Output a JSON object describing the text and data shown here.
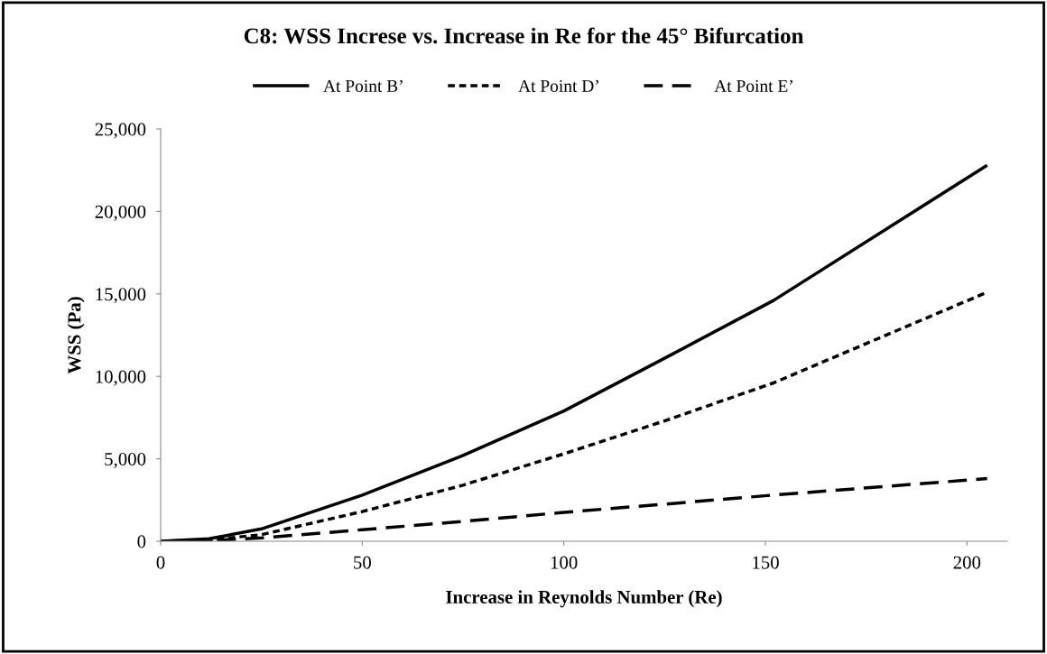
{
  "chart_data": {
    "type": "line",
    "title": "C8: WSS Increse vs. Increase in Re for the 45° Bifurcation",
    "xlabel": "Increase in Reynolds Number (Re)",
    "ylabel": "WSS (Pa)",
    "x": [
      0,
      12,
      25,
      50,
      75,
      100,
      125,
      152,
      205
    ],
    "series": [
      {
        "name": "At Point B’",
        "color": "#000000",
        "line_style": "solid",
        "values": [
          0,
          150,
          750,
          2800,
          5200,
          7900,
          11100,
          14600,
          22800
        ]
      },
      {
        "name": "At Point D’",
        "color": "#000000",
        "line_style": "dotted",
        "values": [
          0,
          80,
          400,
          1800,
          3400,
          5300,
          7300,
          9600,
          15100
        ]
      },
      {
        "name": "At Point E’",
        "color": "#000000",
        "line_style": "dashed",
        "values": [
          0,
          40,
          200,
          700,
          1200,
          1750,
          2250,
          2800,
          3800
        ]
      }
    ],
    "xlim": [
      0,
      210
    ],
    "xticks": [
      0,
      50,
      100,
      150,
      200
    ],
    "ylim": [
      0,
      25000
    ],
    "yticks": [
      {
        "value": 0,
        "label": "0"
      },
      {
        "value": 5000,
        "label": "5,000"
      },
      {
        "value": 10000,
        "label": "10,000"
      },
      {
        "value": 15000,
        "label": "15,000"
      },
      {
        "value": 20000,
        "label": "20,000"
      },
      {
        "value": 25000,
        "label": "25,000"
      }
    ],
    "grid": false,
    "legend": "top",
    "marker": "none"
  }
}
